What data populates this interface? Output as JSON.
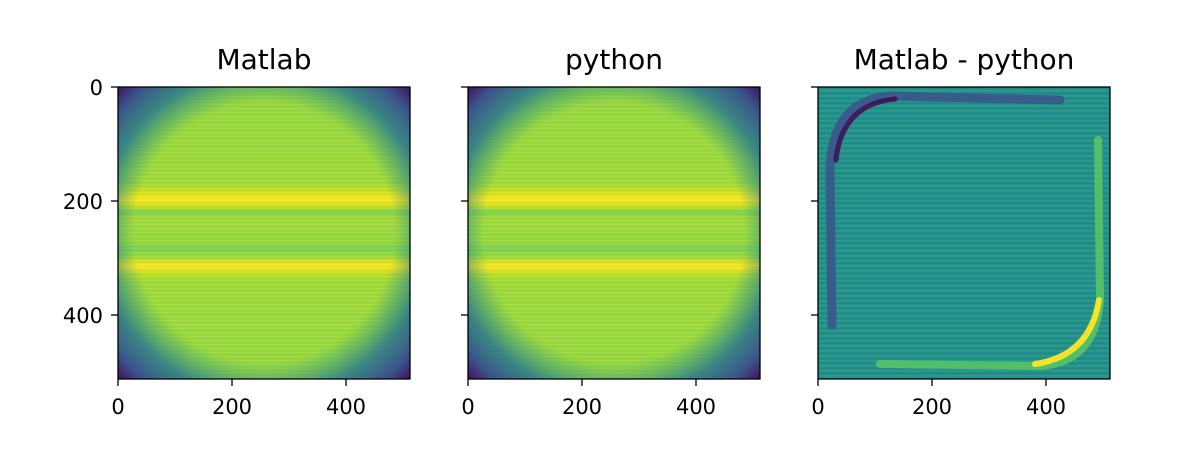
{
  "chart_data": [
    {
      "type": "heatmap",
      "title": "Matlab",
      "xlim": [
        0,
        512
      ],
      "ylim": [
        512,
        0
      ],
      "xticks": [
        0,
        200,
        400
      ],
      "yticks": [
        0,
        200,
        400
      ],
      "xtick_labels": [
        "0",
        "200",
        "400"
      ],
      "ytick_labels": [
        "0",
        "200",
        "400"
      ],
      "colormap": "viridis",
      "content": "bright rounded square field with bright horizontal bands near y=200 and y=315, dark corners"
    },
    {
      "type": "heatmap",
      "title": "python",
      "xlim": [
        0,
        512
      ],
      "ylim": [
        512,
        0
      ],
      "xticks": [
        0,
        200,
        400
      ],
      "yticks": [
        0,
        200,
        400
      ],
      "xtick_labels": [
        "0",
        "200",
        "400"
      ],
      "ytick_labels": [],
      "colormap": "viridis",
      "content": "nearly identical to Matlab panel"
    },
    {
      "type": "heatmap",
      "title": "Matlab - python",
      "xlim": [
        0,
        512
      ],
      "ylim": [
        512,
        0
      ],
      "xticks": [
        0,
        200,
        400
      ],
      "yticks": [
        0,
        200,
        400
      ],
      "xtick_labels": [
        "0",
        "200",
        "400"
      ],
      "ytick_labels": [],
      "colormap": "viridis",
      "content": "mostly mid-teal difference with dark arc at top-left edge and bright yellow arc at bottom-right edge, fine horizontal striping"
    }
  ],
  "colors": {
    "viridis_dark": "#440154",
    "viridis_teal": "#21918c",
    "viridis_green": "#a0da39",
    "viridis_yellow": "#fde725"
  }
}
